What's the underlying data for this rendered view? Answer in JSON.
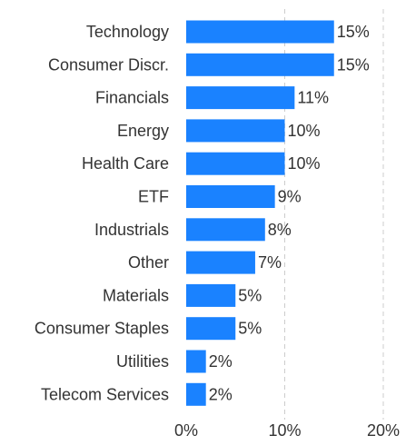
{
  "chart_data": {
    "type": "bar",
    "orientation": "horizontal",
    "categories": [
      "Technology",
      "Consumer Discr.",
      "Financials",
      "Energy",
      "Health Care",
      "ETF",
      "Industrials",
      "Other",
      "Materials",
      "Consumer Staples",
      "Utilities",
      "Telecom Services"
    ],
    "values": [
      15,
      15,
      11,
      10,
      10,
      9,
      8,
      7,
      5,
      5,
      2,
      2
    ],
    "value_labels": [
      "15%",
      "15%",
      "11%",
      "10%",
      "10%",
      "9%",
      "8%",
      "7%",
      "5%",
      "5%",
      "2%",
      "2%"
    ],
    "xticks": [
      0,
      10,
      20
    ],
    "xtick_labels": [
      "0%",
      "10%",
      "20%"
    ],
    "xlim": [
      0,
      20
    ],
    "grid": "vertical-dashed",
    "legend": "none",
    "title": "",
    "xlabel": "",
    "ylabel": ""
  },
  "colors": {
    "bar": "#1a82ff",
    "text": "#333333",
    "grid": "#cccccc"
  }
}
